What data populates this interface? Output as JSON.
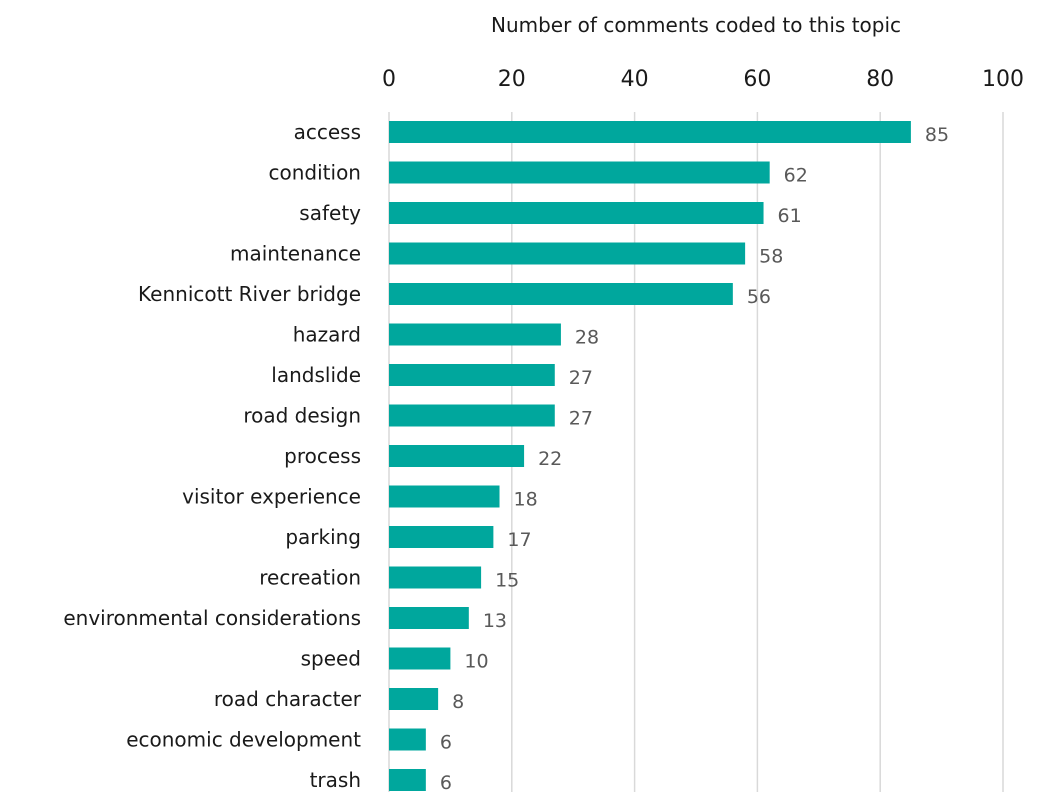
{
  "chart_data": {
    "type": "bar",
    "orientation": "horizontal",
    "xlabel": "Number of comments coded to this topic",
    "xlabel_position": "top",
    "xlim": [
      0,
      100
    ],
    "x_ticks": [
      0,
      20,
      40,
      60,
      80,
      100
    ],
    "grid": true,
    "bar_color": "#00A79D",
    "categories": [
      "access",
      "condition",
      "safety",
      "maintenance",
      "Kennicott River bridge",
      "hazard",
      "landslide",
      "road design",
      "process",
      "visitor experience",
      "parking",
      "recreation",
      "environmental considerations",
      "speed",
      "road character",
      "economic development",
      "trash"
    ],
    "values": [
      85,
      62,
      61,
      58,
      56,
      28,
      27,
      27,
      22,
      18,
      17,
      15,
      13,
      10,
      8,
      6,
      6
    ]
  }
}
